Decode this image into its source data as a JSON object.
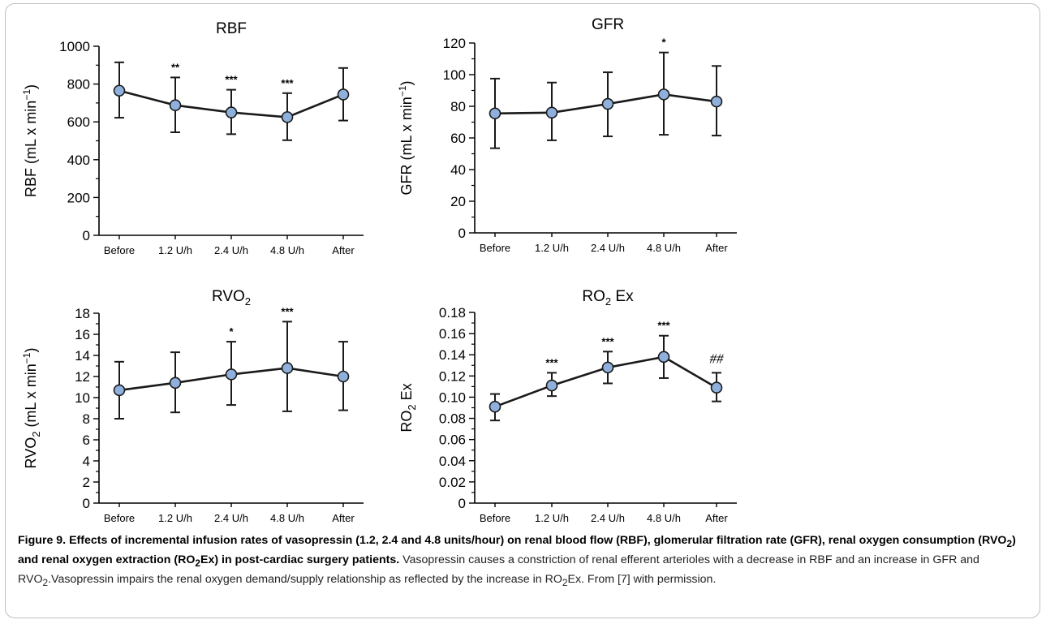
{
  "chart_data": [
    {
      "type": "line",
      "title": "RBF",
      "ylabel": "RBF (mL x min^-1)",
      "ylabel_parts": {
        "main": "RBF (mL x min",
        "sup": "−1",
        "close": ")"
      },
      "categories": [
        "Before",
        "1.2 U/h",
        "2.4 U/h",
        "4.8 U/h",
        "After"
      ],
      "values": [
        765,
        688,
        650,
        625,
        745
      ],
      "err_high": [
        915,
        835,
        770,
        752,
        885
      ],
      "err_low": [
        622,
        545,
        535,
        503,
        607
      ],
      "annotations": [
        "",
        "**",
        "***",
        "***",
        ""
      ],
      "ylim": [
        0,
        1000
      ],
      "yticks": [
        0,
        200,
        400,
        600,
        800,
        1000
      ],
      "ytick_labels": [
        "0",
        "200",
        "400",
        "600",
        "800",
        "1000"
      ]
    },
    {
      "type": "line",
      "title": "GFR",
      "ylabel": "GFR (mL x min^-1)",
      "ylabel_parts": {
        "main": "GFR (mL x min",
        "sup": "−1",
        "close": ")"
      },
      "categories": [
        "Before",
        "1.2 U/h",
        "2.4 U/h",
        "4.8 U/h",
        "After"
      ],
      "values": [
        75.5,
        76,
        81.5,
        87.5,
        83
      ],
      "err_high": [
        97.5,
        95,
        101.5,
        114,
        105.5
      ],
      "err_low": [
        53.5,
        58.5,
        61,
        62,
        61.5
      ],
      "annotations": [
        "",
        "",
        "",
        "*",
        ""
      ],
      "ylim": [
        0,
        120
      ],
      "yticks": [
        0,
        20,
        40,
        60,
        80,
        100,
        120
      ],
      "ytick_labels": [
        "0",
        "20",
        "40",
        "60",
        "80",
        "100",
        "120"
      ]
    },
    {
      "type": "line",
      "title": "RVO2",
      "title_parts": {
        "main": "RVO",
        "sub": "2",
        "after": ""
      },
      "ylabel": "RVO2 (mL x min^-1)",
      "ylabel_parts": {
        "main": "RVO",
        "sub": "2",
        "mid": " (mL x min",
        "sup": "−1",
        "close": ")"
      },
      "categories": [
        "Before",
        "1.2 U/h",
        "2.4 U/h",
        "4.8 U/h",
        "After"
      ],
      "values": [
        10.7,
        11.4,
        12.2,
        12.8,
        12.0
      ],
      "err_high": [
        13.4,
        14.3,
        15.3,
        17.2,
        15.3
      ],
      "err_low": [
        8.0,
        8.6,
        9.3,
        8.7,
        8.8
      ],
      "annotations": [
        "",
        "",
        "*",
        "***",
        ""
      ],
      "ylim": [
        0,
        18
      ],
      "yticks": [
        0,
        2,
        4,
        6,
        8,
        10,
        12,
        14,
        16,
        18
      ],
      "ytick_labels": [
        "0",
        "2",
        "4",
        "6",
        "8",
        "10",
        "12",
        "14",
        "16",
        "18"
      ]
    },
    {
      "type": "line",
      "title": "RO2 Ex",
      "title_parts": {
        "main": "RO",
        "sub": "2",
        "after": " Ex"
      },
      "ylabel": "RO2 Ex",
      "ylabel_parts": {
        "main": "RO",
        "sub": "2",
        "mid": " Ex"
      },
      "categories": [
        "Before",
        "1.2 U/h",
        "2.4 U/h",
        "4.8 U/h",
        "After"
      ],
      "values": [
        0.091,
        0.111,
        0.128,
        0.138,
        0.109
      ],
      "err_high": [
        0.103,
        0.123,
        0.143,
        0.158,
        0.123
      ],
      "err_low": [
        0.078,
        0.101,
        0.113,
        0.118,
        0.096
      ],
      "annotations": [
        "",
        "***",
        "***",
        "***",
        "##"
      ],
      "ylim": [
        0,
        0.18
      ],
      "yticks": [
        0,
        0.02,
        0.04,
        0.06,
        0.08,
        0.1,
        0.12,
        0.14,
        0.16,
        0.18
      ],
      "ytick_labels": [
        "0",
        "0.02",
        "0.04",
        "0.06",
        "0.08",
        "0.10",
        "0.12",
        "0.14",
        "0.16",
        "0.18"
      ]
    }
  ],
  "caption": {
    "title_1": "Figure 9. Effects of incremental infusion rates of vasopressin (1.2, 2.4 and 4.8 units/hour) on renal blood flow (RBF), glomerular filtration rate (GFR), renal oxygen consumption (RVO",
    "title_sub_1": "2",
    "title_2": ") and renal oxygen extraction (RO",
    "title_sub_2": "2",
    "title_3": "Ex) in post-cardiac surgery patients.",
    "body_1": " Vasopressin causes a constriction of renal efferent arterioles with a decrease in RBF and an increase in GFR and RVO",
    "body_sub_1": "2",
    "body_2": ".Vasopressin impairs the renal oxygen demand/supply relationship as reflected by the increase in RO",
    "body_sub_2": "2",
    "body_3": "Ex. From [7] with permission."
  },
  "colors": {
    "marker_fill": "#8fb0dc",
    "marker_stroke": "#1a1a1a",
    "line": "#1a1a1a"
  }
}
